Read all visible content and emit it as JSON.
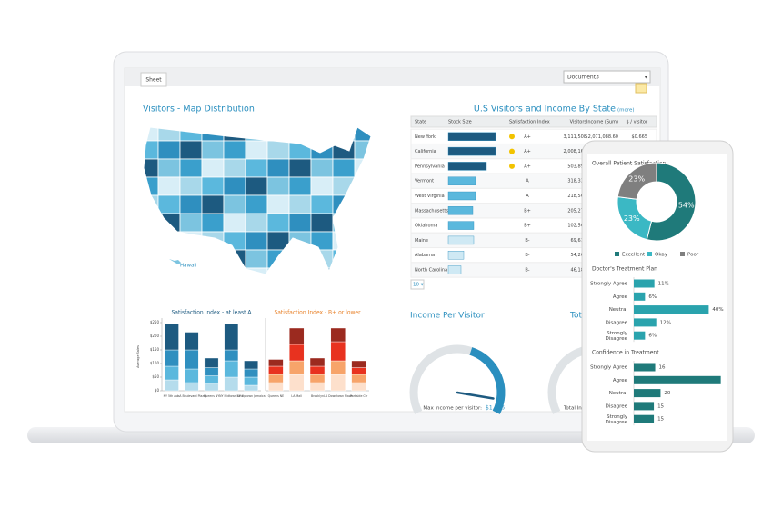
{
  "tab": "Sheet",
  "dropdown": "Document3",
  "map": {
    "title": "Visitors - Map Distribution",
    "hawaii": "Hawaii"
  },
  "table": {
    "title": "U.S Visitors and Income By State",
    "more": "(more)",
    "columns": [
      "State",
      "Stock Size",
      "Satisfaction Index",
      "Visitors",
      "Income (Sum)",
      "$ / visitor"
    ],
    "stock_lim": [
      0,
      55
    ],
    "rows": [
      {
        "state": "New York",
        "stock": 52,
        "index": "A+",
        "visitors": "3,111,508",
        "income": "$2,071,088.60",
        "per_visitor": "$0.665"
      },
      {
        "state": "California",
        "stock": 52,
        "index": "A+",
        "visitors": "2,008,166"
      },
      {
        "state": "Pennsylvania",
        "stock": 42,
        "index": "A+",
        "visitors": "503,898"
      },
      {
        "state": "Vermont",
        "stock": 30,
        "index": "A",
        "visitors": "318,332"
      },
      {
        "state": "West Virginia",
        "stock": 30,
        "index": "A",
        "visitors": "218,560"
      },
      {
        "state": "Massachusetts",
        "stock": 27,
        "index": "B+",
        "visitors": "205,271"
      },
      {
        "state": "Oklahoma",
        "stock": 28,
        "index": "B+",
        "visitors": "102,503"
      },
      {
        "state": "Maine",
        "stock": 28,
        "index": "B-",
        "visitors": "69,614"
      },
      {
        "state": "Alabama",
        "stock": 17,
        "index": "B-",
        "visitors": "54,201"
      },
      {
        "state": "North Carolina",
        "stock": 14,
        "index": "B-",
        "visitors": "46,185"
      }
    ],
    "pager": "10 ▾"
  },
  "bar_charts": [
    {
      "type": "bar",
      "stacked": true,
      "title": "Satisfaction Index - at least A",
      "title_color": "#1d5a80",
      "y_label": "Average Sales",
      "categories": [
        "NY 5th Ave.",
        "LA Boulevard Plaza",
        "Queens NY",
        "NY Midtown Link",
        "NY Uptown Jamaica"
      ],
      "ylim": [
        0,
        250
      ],
      "yticks": [
        {
          "value": 0,
          "label": "$0"
        },
        {
          "value": 50,
          "label": "$50"
        },
        {
          "value": 100,
          "label": "$100"
        },
        {
          "value": 150,
          "label": "$150"
        },
        {
          "value": 200,
          "label": "$200"
        },
        {
          "value": 250,
          "label": "$250"
        }
      ],
      "series": [
        {
          "color": "#b5dcec",
          "values": [
            40,
            30,
            25,
            50,
            20
          ]
        },
        {
          "color": "#5bb8dd",
          "values": [
            50,
            50,
            30,
            60,
            30
          ]
        },
        {
          "color": "#2f8fbf",
          "values": [
            60,
            70,
            30,
            40,
            30
          ]
        },
        {
          "color": "#1d5a80",
          "values": [
            95,
            65,
            35,
            95,
            30
          ]
        }
      ]
    },
    {
      "type": "bar",
      "stacked": true,
      "title": "Satisfaction Index - B+ or lower",
      "title_color": "#e8822a",
      "categories": [
        "Queens NE",
        "LA Mall",
        "Brooklyn",
        "LA Downtown Plaza",
        "Parkside Ctr"
      ],
      "ylim": [
        0,
        250
      ],
      "series": [
        {
          "color": "#fde0cc",
          "values": [
            30,
            60,
            30,
            60,
            30
          ]
        },
        {
          "color": "#f7a46a",
          "values": [
            30,
            50,
            30,
            50,
            30
          ]
        },
        {
          "color": "#e8321f",
          "values": [
            30,
            60,
            30,
            70,
            25
          ]
        },
        {
          "color": "#9b2a1f",
          "values": [
            25,
            60,
            30,
            50,
            25
          ]
        }
      ]
    }
  ],
  "gauges": [
    {
      "type": "gauge",
      "title": "Income Per Visitor",
      "caption": "Max income per visitor:",
      "value": 1.156,
      "value_label": "$1.156",
      "ylim": [
        0,
        1.25
      ]
    },
    {
      "type": "gauge",
      "title": "Tot",
      "caption": "Total In"
    }
  ],
  "phone": {
    "donut": {
      "type": "pie",
      "title": "Overall Patient Satisfaction",
      "categories": [
        "Excellent",
        "Okay",
        "Poor"
      ],
      "values": [
        54,
        23,
        23
      ],
      "value_labels": [
        "54%",
        "23%",
        "23%"
      ],
      "colors": [
        "#1f7a7a",
        "#3bb8c4",
        "#7f7f7f"
      ]
    },
    "doctor": {
      "type": "bar",
      "orientation": "horizontal",
      "title": "Doctor's Treatment Plan",
      "color": "#2aa3ad",
      "categories": [
        "Strongly Agree",
        "Agree",
        "Neutral",
        "Disagree",
        "Strongly Disagree"
      ],
      "values": [
        11,
        6,
        40,
        12,
        6
      ],
      "value_labels": [
        "11%",
        "6%",
        "40%",
        "12%",
        "6%"
      ],
      "xlim": [
        0,
        50
      ]
    },
    "confidence": {
      "type": "bar",
      "orientation": "horizontal",
      "title": "Confidence in Treatment",
      "color": "#1f7a7a",
      "categories": [
        "Strongly Agree",
        "Agree",
        "Neutral",
        "Disagree",
        "Strongly Disagree"
      ],
      "values": [
        16,
        65,
        20,
        15,
        15
      ],
      "value_labels": [
        "16",
        null,
        "20",
        "15",
        "15"
      ],
      "xlim": [
        0,
        70
      ]
    }
  }
}
